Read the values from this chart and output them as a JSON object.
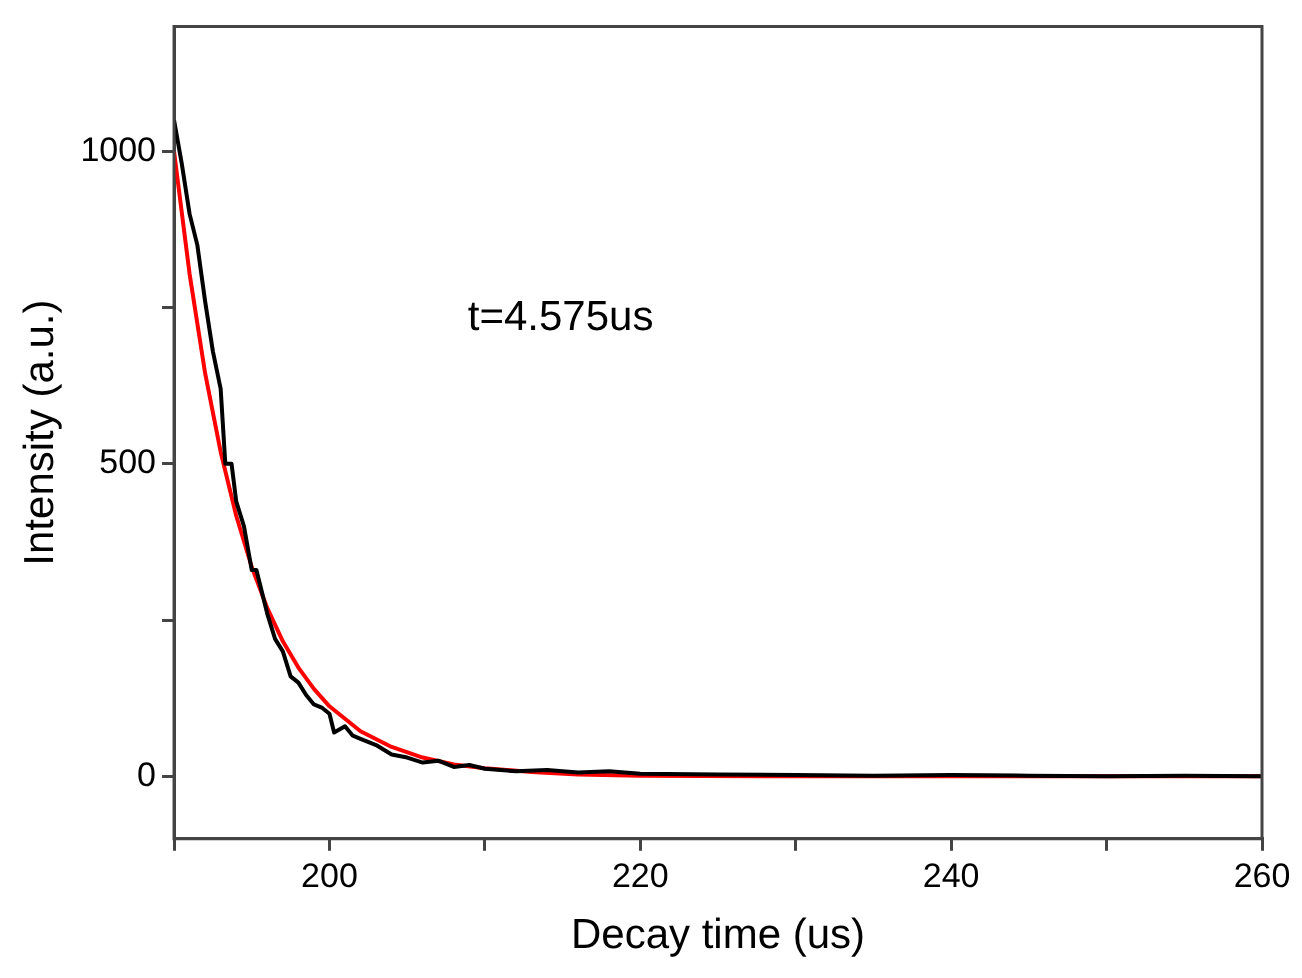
{
  "chart_data": {
    "type": "line",
    "xlabel": "Decay time (us)",
    "ylabel": "Intensity (a.u.)",
    "annotations": [
      "t=4.575us"
    ],
    "xlim": [
      190,
      260
    ],
    "xticks": [
      {
        "value": 190,
        "label": null
      },
      200,
      {
        "value": 210,
        "label": null
      },
      220,
      {
        "value": 230,
        "label": null
      },
      240,
      {
        "value": 250,
        "label": null
      },
      260
    ],
    "ylim": [
      -100,
      1200
    ],
    "yticks": [
      0,
      {
        "value": 250,
        "label": null
      },
      500,
      {
        "value": 750,
        "label": null
      },
      1000
    ],
    "grid": false,
    "legend": false,
    "marker": "none",
    "line_style": "solid",
    "series": [
      {
        "color": "#000000",
        "x": [
          190,
          190.5,
          191,
          191.5,
          192,
          192.5,
          193,
          193.3,
          193.7,
          194,
          194.5,
          195,
          195.3,
          196,
          196.5,
          197,
          197.5,
          198,
          198.5,
          199,
          199.5,
          200,
          200.3,
          201,
          201.5,
          202,
          203,
          204,
          205,
          206,
          207,
          208,
          209,
          210,
          212,
          214,
          216,
          218,
          220,
          225,
          230,
          235,
          240,
          245,
          250,
          255,
          260
        ],
        "values": [
          1050,
          980,
          900,
          850,
          760,
          680,
          620,
          500,
          500,
          440,
          400,
          330,
          330,
          260,
          220,
          200,
          160,
          150,
          130,
          115,
          110,
          100,
          70,
          80,
          65,
          60,
          50,
          35,
          30,
          22,
          25,
          15,
          18,
          12,
          8,
          10,
          6,
          8,
          4,
          3,
          2,
          1,
          2,
          1,
          0,
          1,
          0
        ]
      },
      {
        "color": "#ff0000",
        "x": [
          190,
          191,
          192,
          193,
          194,
          195,
          196,
          197,
          198,
          199,
          200,
          202,
          204,
          206,
          208,
          210,
          213,
          216,
          220,
          230,
          245,
          260
        ],
        "values": [
          1000,
          804,
          645,
          519,
          417,
          335,
          269,
          216,
          174,
          140,
          112,
          72,
          47,
          30,
          19,
          13,
          7,
          3,
          1,
          0,
          0,
          0
        ]
      }
    ]
  }
}
